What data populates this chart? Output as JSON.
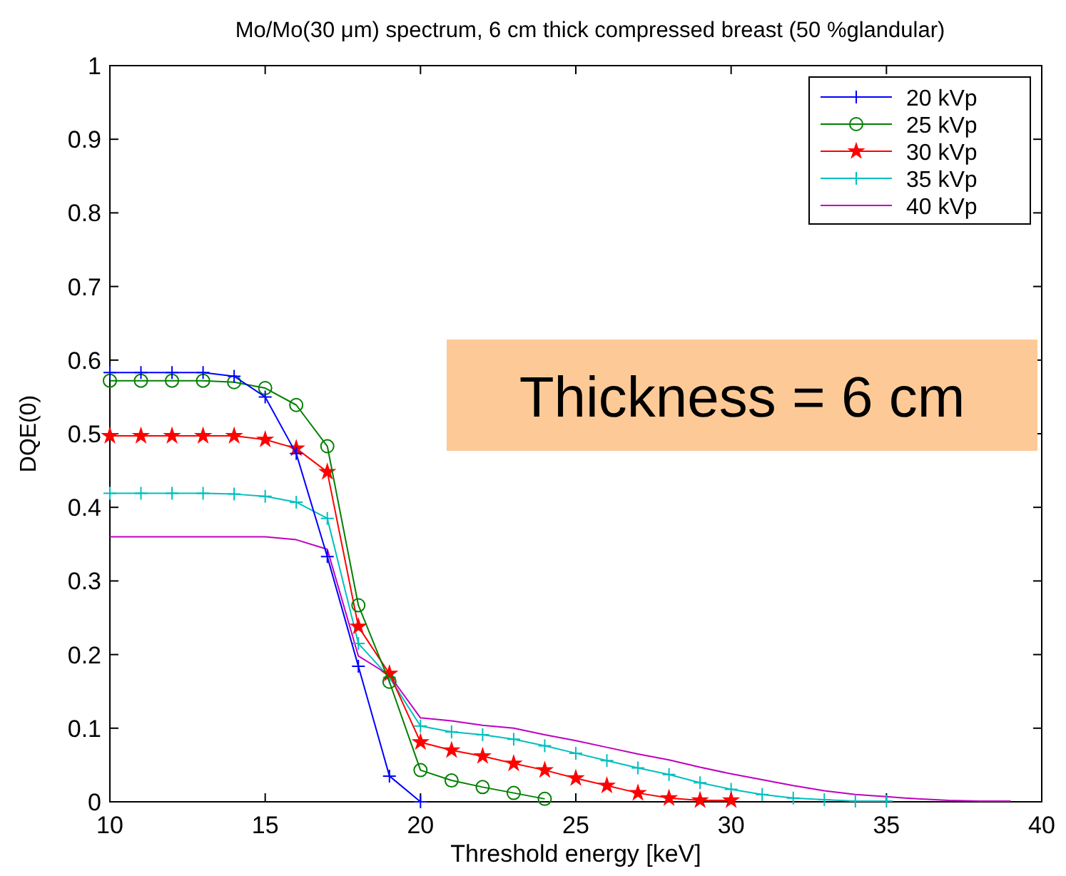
{
  "chart_data": {
    "type": "line",
    "title": "Mo/Mo(30 μm) spectrum, 6 cm thick compressed breast (50 %glandular)",
    "xlabel": "Threshold energy [keV]",
    "ylabel": "DQE(0)",
    "xlim": [
      10,
      40
    ],
    "xticks": [
      10,
      15,
      20,
      25,
      30,
      35,
      40
    ],
    "ylim": [
      0,
      1
    ],
    "yticks": [
      0,
      0.1,
      0.2,
      0.3,
      0.4,
      0.5,
      0.6,
      0.7,
      0.8,
      0.9,
      1
    ],
    "grid": false,
    "legend": "top right",
    "line_style": "solid",
    "annotations": [
      "Thickness = 6 cm"
    ],
    "series": [
      {
        "name": "20 kVp",
        "color": "#0000ff",
        "marker": "cross",
        "x": [
          10,
          11,
          12,
          13,
          14,
          15,
          16,
          17,
          18,
          19,
          20
        ],
        "values": [
          0.583,
          0.583,
          0.583,
          0.583,
          0.578,
          0.55,
          0.473,
          0.333,
          0.184,
          0.035,
          0
        ]
      },
      {
        "name": "25 kVp",
        "color": "#008000",
        "marker": "circle",
        "x": [
          10,
          11,
          12,
          13,
          14,
          15,
          16,
          17,
          18,
          19,
          20,
          21,
          22,
          23,
          24
        ],
        "values": [
          0.572,
          0.572,
          0.572,
          0.572,
          0.57,
          0.562,
          0.539,
          0.483,
          0.267,
          0.163,
          0.043,
          0.029,
          0.02,
          0.012,
          0.004
        ]
      },
      {
        "name": "30 kVp",
        "color": "#ff0000",
        "marker": "star",
        "x": [
          10,
          11,
          12,
          13,
          14,
          15,
          16,
          17,
          18,
          19,
          20,
          21,
          22,
          23,
          24,
          25,
          26,
          27,
          28,
          29,
          30
        ],
        "values": [
          0.497,
          0.497,
          0.497,
          0.497,
          0.497,
          0.492,
          0.48,
          0.448,
          0.238,
          0.174,
          0.081,
          0.07,
          0.062,
          0.052,
          0.043,
          0.032,
          0.022,
          0.012,
          0.005,
          0.002,
          0.002
        ]
      },
      {
        "name": "35 kVp",
        "color": "#00bfbf",
        "marker": "cross",
        "x": [
          10,
          11,
          12,
          13,
          14,
          15,
          16,
          17,
          18,
          19,
          20,
          21,
          22,
          23,
          24,
          25,
          26,
          27,
          28,
          29,
          30,
          31,
          32,
          33,
          34,
          35
        ],
        "values": [
          0.419,
          0.419,
          0.419,
          0.419,
          0.418,
          0.415,
          0.407,
          0.385,
          0.215,
          0.169,
          0.103,
          0.095,
          0.091,
          0.085,
          0.076,
          0.066,
          0.056,
          0.046,
          0.037,
          0.026,
          0.017,
          0.01,
          0.005,
          0.003,
          0.001,
          0.001
        ]
      },
      {
        "name": "40 kVp",
        "color": "#bf00bf",
        "marker": "none",
        "x": [
          10,
          11,
          12,
          13,
          14,
          15,
          16,
          17,
          18,
          19,
          20,
          21,
          22,
          23,
          24,
          25,
          26,
          27,
          28,
          29,
          30,
          31,
          32,
          33,
          34,
          35,
          36,
          37,
          38,
          39
        ],
        "values": [
          0.36,
          0.36,
          0.36,
          0.36,
          0.36,
          0.36,
          0.356,
          0.343,
          0.198,
          0.172,
          0.114,
          0.11,
          0.104,
          0.1,
          0.091,
          0.083,
          0.074,
          0.065,
          0.057,
          0.047,
          0.038,
          0.03,
          0.022,
          0.015,
          0.01,
          0.007,
          0.004,
          0.002,
          0.001,
          0.001
        ]
      }
    ]
  }
}
